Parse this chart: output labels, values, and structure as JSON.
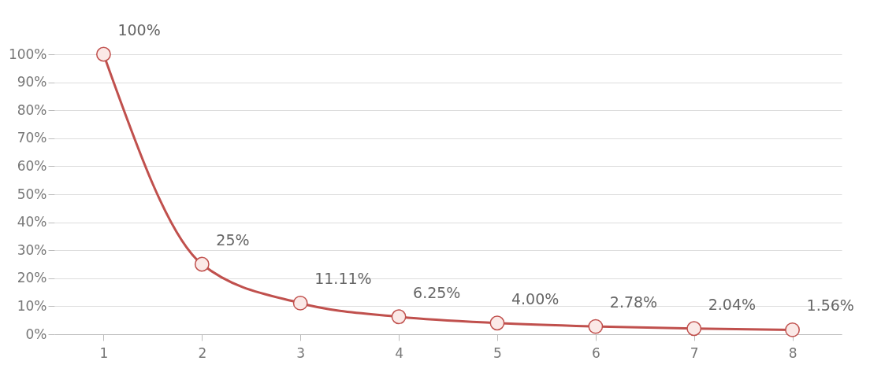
{
  "chart_data": {
    "type": "line",
    "categories": [
      "1",
      "2",
      "3",
      "4",
      "5",
      "6",
      "7",
      "8"
    ],
    "series": [
      {
        "color": "#c0504d",
        "values": [
          100,
          25,
          11.11,
          6.25,
          4.0,
          2.78,
          2.04,
          1.56
        ],
        "value_labels": [
          "100%",
          "25%",
          "11.11%",
          "6.25%",
          "4.00%",
          "2.78%",
          "2.04%",
          "1.56%"
        ]
      }
    ],
    "ylim": [
      0,
      100
    ],
    "yticks": [
      {
        "value": 0,
        "label": "0%"
      },
      {
        "value": 10,
        "label": "10%"
      },
      {
        "value": 20,
        "label": "20%"
      },
      {
        "value": 30,
        "label": "30%"
      },
      {
        "value": 40,
        "label": "40%"
      },
      {
        "value": 50,
        "label": "50%"
      },
      {
        "value": 60,
        "label": "60%"
      },
      {
        "value": 70,
        "label": "70%"
      },
      {
        "value": 80,
        "label": "80%"
      },
      {
        "value": 90,
        "label": "90%"
      },
      {
        "value": 100,
        "label": "100%"
      }
    ],
    "grid": "y",
    "marker": "circle",
    "line_style": "solid"
  }
}
